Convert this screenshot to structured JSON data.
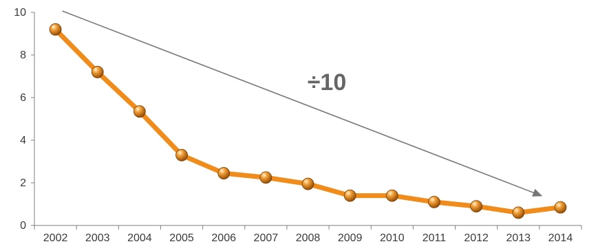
{
  "chart_data": {
    "type": "line",
    "title": "",
    "xlabel": "",
    "ylabel": "",
    "x": [
      "2002",
      "2003",
      "2004",
      "2005",
      "2006",
      "2007",
      "2008",
      "2009",
      "2010",
      "2011",
      "2012",
      "2013",
      "2014"
    ],
    "yticks": [
      "0",
      "2",
      "4",
      "6",
      "8",
      "10"
    ],
    "ylim": [
      0,
      10
    ],
    "series": [
      {
        "values": [
          9.2,
          7.2,
          5.35,
          3.3,
          2.45,
          2.25,
          1.95,
          1.4,
          1.4,
          1.1,
          0.9,
          0.6,
          0.85
        ],
        "color": "#f08c1c",
        "marker_color": "#d97d12"
      }
    ],
    "annotation": {
      "text": "÷10",
      "arrow_from": {
        "x": "2002",
        "y": 10
      },
      "arrow_to": {
        "x": "2014",
        "y": 1.4
      },
      "color": "#777777"
    },
    "grid": false,
    "legend": "none"
  }
}
